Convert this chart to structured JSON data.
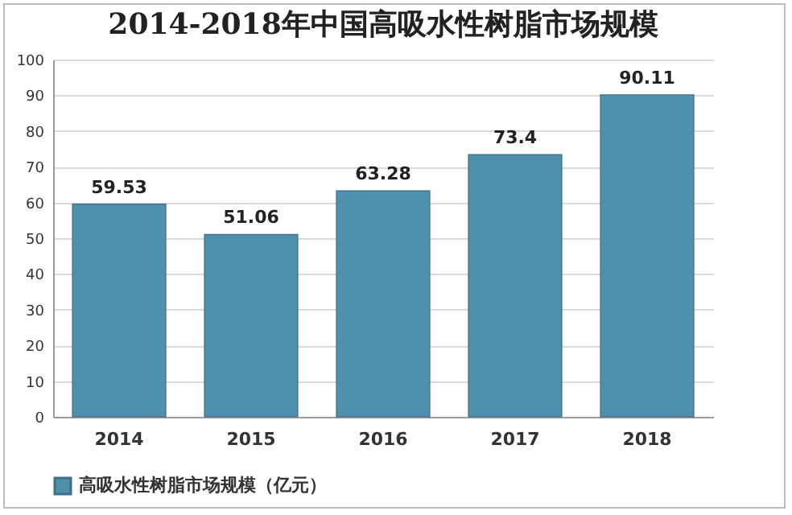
{
  "chart_data": {
    "type": "bar",
    "title": "2014-2018年中国高吸水性树脂市场规模",
    "categories": [
      "2014",
      "2015",
      "2016",
      "2017",
      "2018"
    ],
    "series": [
      {
        "name": "高吸水性树脂市场规模（亿元）",
        "color": "#4f8fae",
        "values": [
          59.53,
          51.06,
          63.28,
          73.4,
          90.11
        ]
      }
    ],
    "ylim": [
      0,
      100
    ],
    "yticks": [
      0,
      10,
      20,
      30,
      40,
      50,
      60,
      70,
      80,
      90,
      100
    ],
    "grid": "y",
    "legend": "bottom",
    "data_labels": true
  }
}
